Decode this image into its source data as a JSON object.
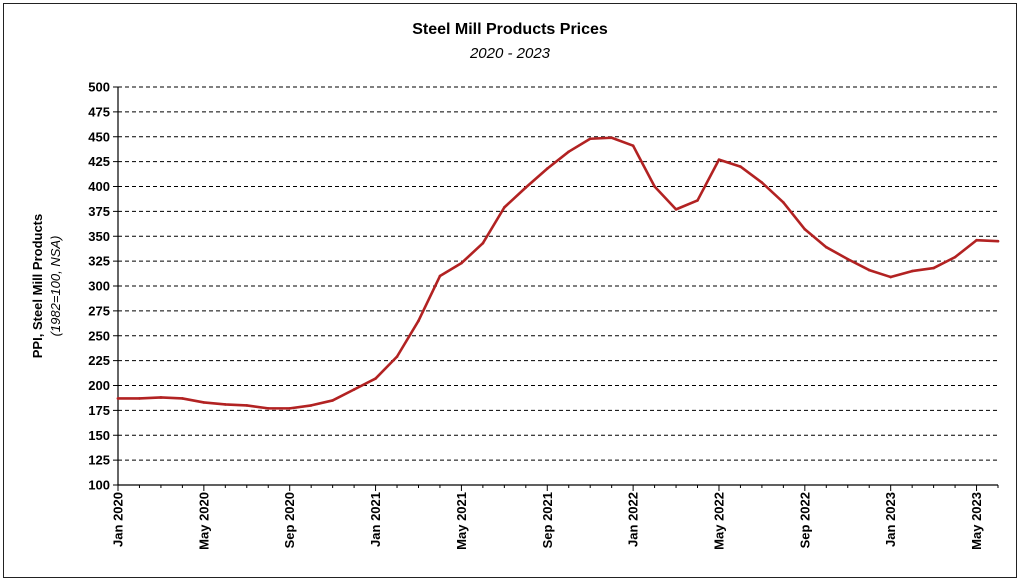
{
  "chart_data": {
    "type": "line",
    "title": "Steel Mill Products Prices",
    "subtitle": "2020 - 2023",
    "ylabel": "PPI, Steel Mill Products",
    "ylabel_sub": "(1982=100, NSA)",
    "ylim": [
      100,
      500
    ],
    "ytick_step": 25,
    "grid": "horizontal dashed",
    "line_color": "#b22222",
    "x_tick_labels": [
      {
        "index": 0,
        "label": "Jan 2020"
      },
      {
        "index": 4,
        "label": "May 2020"
      },
      {
        "index": 8,
        "label": "Sep 2020"
      },
      {
        "index": 12,
        "label": "Jan 2021"
      },
      {
        "index": 16,
        "label": "May 2021"
      },
      {
        "index": 20,
        "label": "Sep 2021"
      },
      {
        "index": 24,
        "label": "Jan 2022"
      },
      {
        "index": 28,
        "label": "May 2022"
      },
      {
        "index": 32,
        "label": "Sep 2022"
      },
      {
        "index": 36,
        "label": "Jan 2023"
      },
      {
        "index": 40,
        "label": "May 2023"
      }
    ],
    "x": [
      "2020-01",
      "2020-02",
      "2020-03",
      "2020-04",
      "2020-05",
      "2020-06",
      "2020-07",
      "2020-08",
      "2020-09",
      "2020-10",
      "2020-11",
      "2020-12",
      "2021-01",
      "2021-02",
      "2021-03",
      "2021-04",
      "2021-05",
      "2021-06",
      "2021-07",
      "2021-08",
      "2021-09",
      "2021-10",
      "2021-11",
      "2021-12",
      "2022-01",
      "2022-02",
      "2022-03",
      "2022-04",
      "2022-05",
      "2022-06",
      "2022-07",
      "2022-08",
      "2022-09",
      "2022-10",
      "2022-11",
      "2022-12",
      "2023-01",
      "2023-02",
      "2023-03",
      "2023-04",
      "2023-05",
      "2023-06"
    ],
    "series": [
      {
        "values": [
          187,
          187,
          188,
          187,
          183,
          181,
          180,
          177,
          177,
          180,
          185,
          196,
          207,
          229,
          265,
          310,
          323,
          343,
          379,
          399,
          418,
          435,
          448,
          449,
          441,
          400,
          377,
          386,
          427,
          420,
          404,
          384,
          357,
          339,
          327,
          316,
          309,
          315,
          318,
          329,
          346,
          345
        ]
      }
    ]
  }
}
